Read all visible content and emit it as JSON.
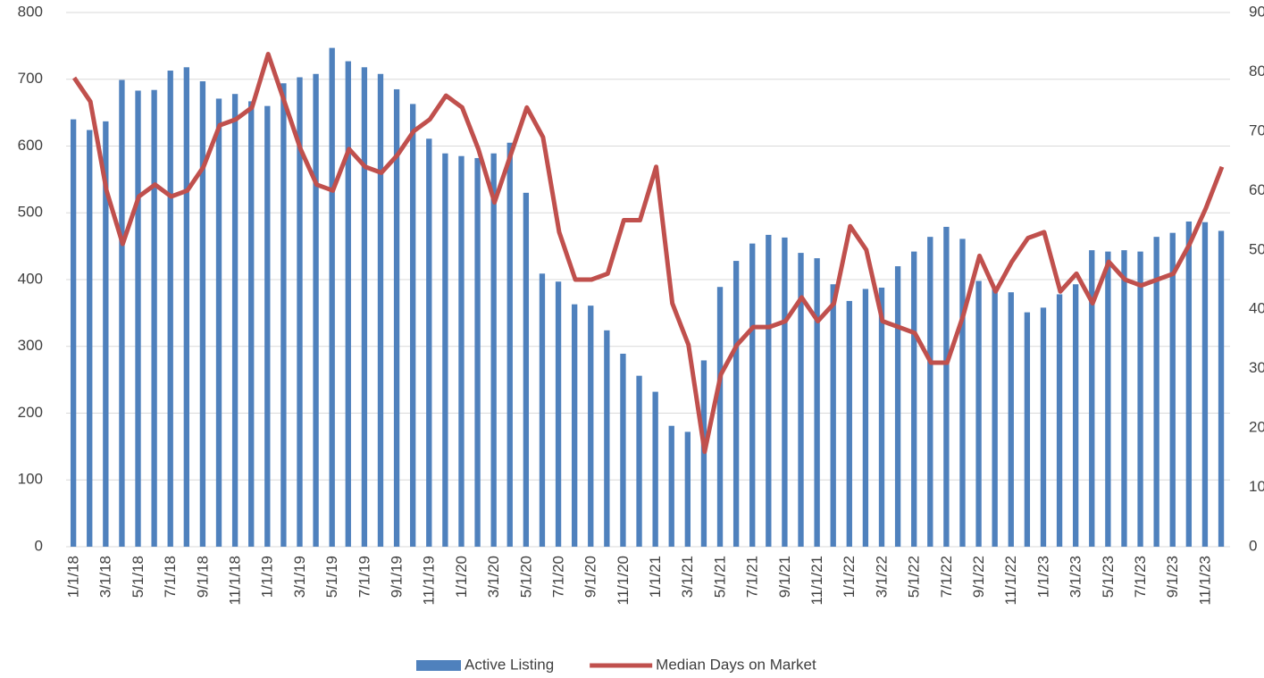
{
  "chart_data": {
    "type": "bar-line",
    "categories": [
      "1/1/18",
      null,
      "3/1/18",
      null,
      "5/1/18",
      null,
      "7/1/18",
      null,
      "9/1/18",
      null,
      "11/1/18",
      null,
      "1/1/19",
      null,
      "3/1/19",
      null,
      "5/1/19",
      null,
      "7/1/19",
      null,
      "9/1/19",
      null,
      "11/1/19",
      null,
      "1/1/20",
      null,
      "3/1/20",
      null,
      "5/1/20",
      null,
      "7/1/20",
      null,
      "9/1/20",
      null,
      "11/1/20",
      null,
      "1/1/21",
      null,
      "3/1/21",
      null,
      "5/1/21",
      null,
      "7/1/21",
      null,
      "9/1/21",
      null,
      "11/1/21",
      null,
      "1/1/22",
      null,
      "3/1/22",
      null,
      "5/1/22",
      null,
      "7/1/22",
      null,
      "9/1/22",
      null,
      "11/1/22",
      null,
      "1/1/23",
      null,
      "3/1/23",
      null,
      "5/1/23",
      null,
      "7/1/23",
      null,
      "9/1/23",
      null,
      "11/1/23",
      null
    ],
    "series": [
      {
        "name": "Active Listing",
        "kind": "bar",
        "color": "#4f81bd",
        "values": [
          640,
          624,
          637,
          699,
          683,
          684,
          713,
          718,
          697,
          671,
          678,
          667,
          660,
          694,
          703,
          708,
          747,
          727,
          718,
          708,
          685,
          663,
          611,
          589,
          585,
          582,
          589,
          605,
          530,
          409,
          397,
          363,
          361,
          324,
          289,
          256,
          232,
          181,
          172,
          279,
          389,
          428,
          454,
          467,
          463,
          440,
          432,
          393,
          368,
          386,
          388,
          420,
          442,
          464,
          479,
          461,
          398,
          388,
          381,
          351,
          358,
          378,
          393,
          444,
          442,
          444,
          442,
          464,
          470,
          487,
          486,
          473
        ]
      },
      {
        "name": "Median Days on Market",
        "kind": "line",
        "axis": "y2",
        "color": "#c0504d",
        "values": [
          79,
          75,
          60,
          51,
          59,
          61,
          59,
          60,
          64,
          71,
          72,
          74,
          83,
          75,
          67,
          61,
          60,
          67,
          64,
          63,
          66,
          70,
          72,
          76,
          74,
          67,
          58,
          66,
          74,
          69,
          53,
          45,
          45,
          46,
          55,
          55,
          64,
          41,
          34,
          16,
          29,
          34,
          37,
          37,
          38,
          42,
          38,
          41,
          54,
          50,
          38,
          37,
          36,
          31,
          31,
          39,
          49,
          43,
          48,
          52,
          53,
          43,
          46,
          41,
          48,
          45,
          44,
          45,
          46,
          51,
          57,
          64
        ]
      }
    ],
    "ylim": [
      0,
      800
    ],
    "yticks": [
      0,
      100,
      200,
      300,
      400,
      500,
      600,
      700,
      800
    ],
    "y2lim": [
      0,
      90
    ],
    "y2ticks": [
      0,
      10,
      20,
      30,
      40,
      50,
      60,
      70,
      80,
      90
    ],
    "grid": true,
    "legend": "bottom"
  }
}
